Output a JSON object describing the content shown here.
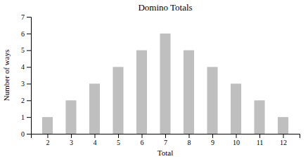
{
  "chart_data": {
    "type": "bar",
    "title": "Domino Totals",
    "xlabel": "Total",
    "ylabel": "Number of ways",
    "x": [
      2,
      3,
      4,
      5,
      6,
      7,
      8,
      9,
      10,
      11,
      12
    ],
    "values": [
      1,
      2,
      3,
      4,
      5,
      6,
      5,
      4,
      3,
      2,
      1
    ],
    "color": "#c0bfbf",
    "xlim": [
      1.3,
      12.7
    ],
    "xticks": [
      2,
      3,
      4,
      5,
      6,
      7,
      8,
      9,
      10,
      11,
      12
    ],
    "ylim": [
      0,
      7
    ],
    "yticks": [
      0,
      1,
      2,
      3,
      4,
      5,
      6,
      7
    ],
    "grid": false
  }
}
